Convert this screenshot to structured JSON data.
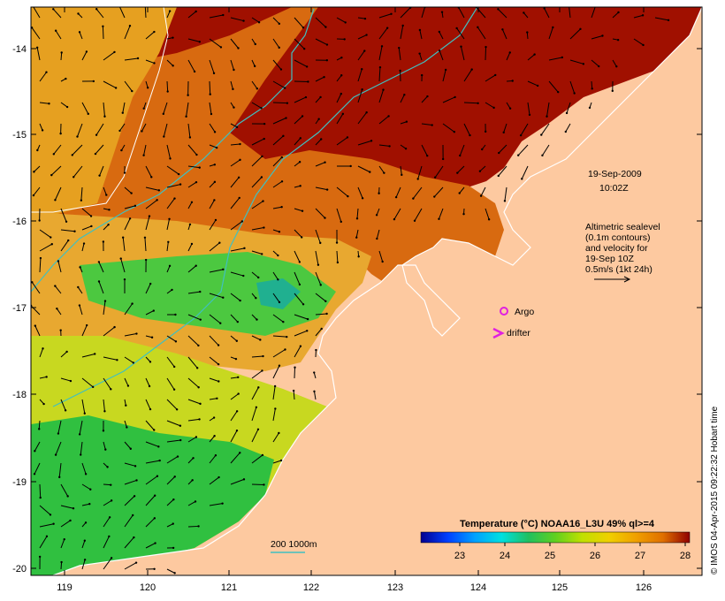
{
  "map": {
    "lon_ticks": [
      "119",
      "120",
      "121",
      "122",
      "123",
      "124",
      "125",
      "126"
    ],
    "lat_ticks": [
      "-14",
      "-15",
      "-16",
      "-17",
      "-18",
      "-19",
      "-20"
    ],
    "lon_range": [
      118.6,
      126.7
    ],
    "lat_range": [
      -20.1,
      -13.5
    ]
  },
  "annotations": {
    "date": "19-Sep-2009",
    "time": "10:02Z",
    "altimetry_lines": [
      "Altimetric sealevel",
      "(0.1m contours)",
      "and velocity for",
      "19-Sep 10Z",
      "0.5m/s (1kt 24h)"
    ],
    "argo_label": "Argo",
    "drifter_label": "drifter",
    "bathy_label": "200  1000m"
  },
  "colorbar": {
    "title": "Temperature (°C) NOAA16_L3U 49% ql>=4",
    "ticks": [
      "23",
      "24",
      "25",
      "26",
      "27",
      "28"
    ],
    "colors": [
      "#000090",
      "#0040ff",
      "#00a0ff",
      "#00e0e0",
      "#20c060",
      "#60d020",
      "#c0e000",
      "#f0d000",
      "#f0a000",
      "#e07000",
      "#c03000",
      "#900000"
    ]
  },
  "credit": "© IMOS 04-Apr-2015 09:22:32 Hobart time",
  "colors": {
    "land": "#fdc9a0",
    "coast": "#ffffff",
    "contour": "#40c0c0",
    "argo": "#e020e0",
    "drifter": "#e020e0"
  }
}
